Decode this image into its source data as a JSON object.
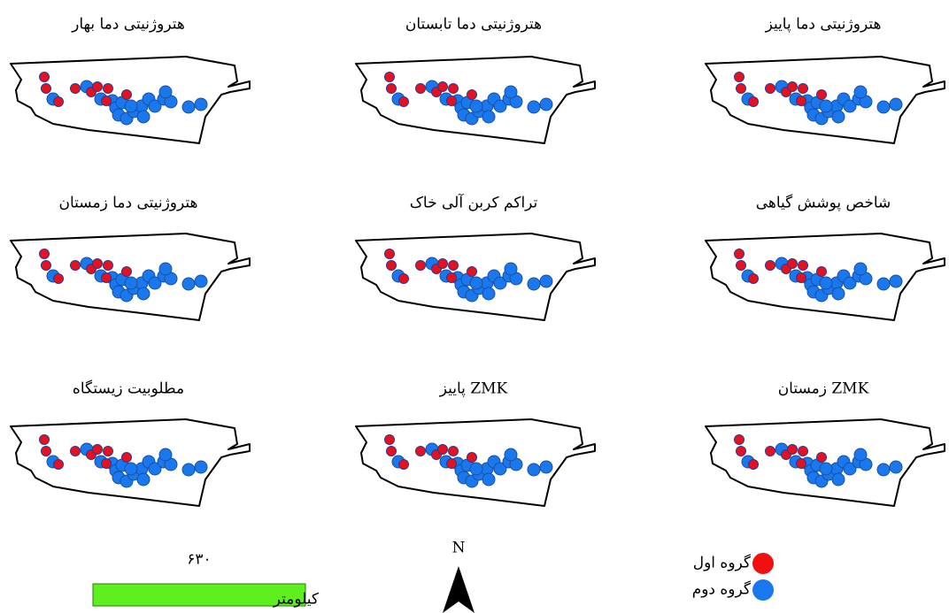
{
  "panels": [
    {
      "title": "هتروژنیتی دما بهار"
    },
    {
      "title": "هتروژنیتی دما تابستان"
    },
    {
      "title": "هتروژنیتی دما پاییز"
    },
    {
      "title": "هتروژنیتی دما زمستان"
    },
    {
      "title": "تراکم کربن آلی خاک"
    },
    {
      "title": "شاخص پوشش گیاهی"
    },
    {
      "title": "مطلوبیت زیستگاه"
    },
    {
      "title": "ZMK پاییز"
    },
    {
      "title": "ZMK زمستان"
    }
  ],
  "scale_bar": {
    "distance": "۶۳۰",
    "unit": "کیلومتر"
  },
  "north_arrow": {
    "label": "N"
  },
  "legend": {
    "items": [
      {
        "label": "گروه اول"
      },
      {
        "label": "گروه دوم"
      }
    ]
  }
}
